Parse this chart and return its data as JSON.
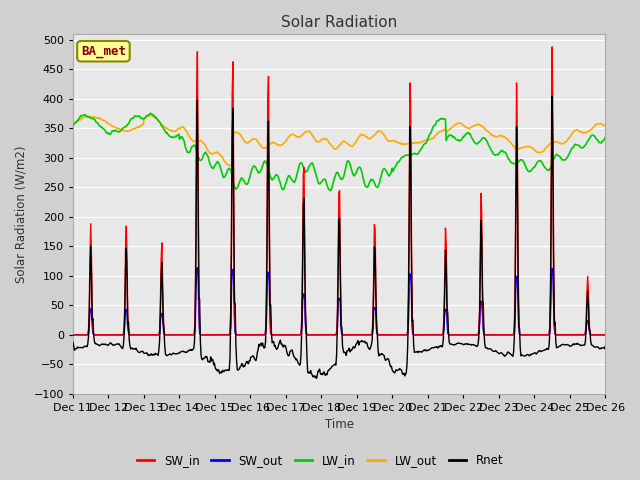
{
  "title": "Solar Radiation",
  "ylabel": "Solar Radiation (W/m2)",
  "xlabel": "Time",
  "ylim": [
    -100,
    510
  ],
  "yticks": [
    -100,
    -50,
    0,
    50,
    100,
    150,
    200,
    250,
    300,
    350,
    400,
    450,
    500
  ],
  "xtick_labels": [
    "Dec 11",
    "Dec 12",
    "Dec 13",
    "Dec 14",
    "Dec 15",
    "Dec 16",
    "Dec 17",
    "Dec 18",
    "Dec 19",
    "Dec 20",
    "Dec 21",
    "Dec 22",
    "Dec 23",
    "Dec 24",
    "Dec 25",
    "Dec 26"
  ],
  "colors": {
    "SW_in": "#ff0000",
    "SW_out": "#0000ff",
    "LW_in": "#00cc00",
    "LW_out": "#ffaa00",
    "Rnet": "#000000"
  },
  "fig_bg": "#d0d0d0",
  "plot_bg": "#e8e8e8",
  "annotation_text": "BA_met",
  "annotation_bg": "#ffff99",
  "annotation_border": "#aaaa00"
}
